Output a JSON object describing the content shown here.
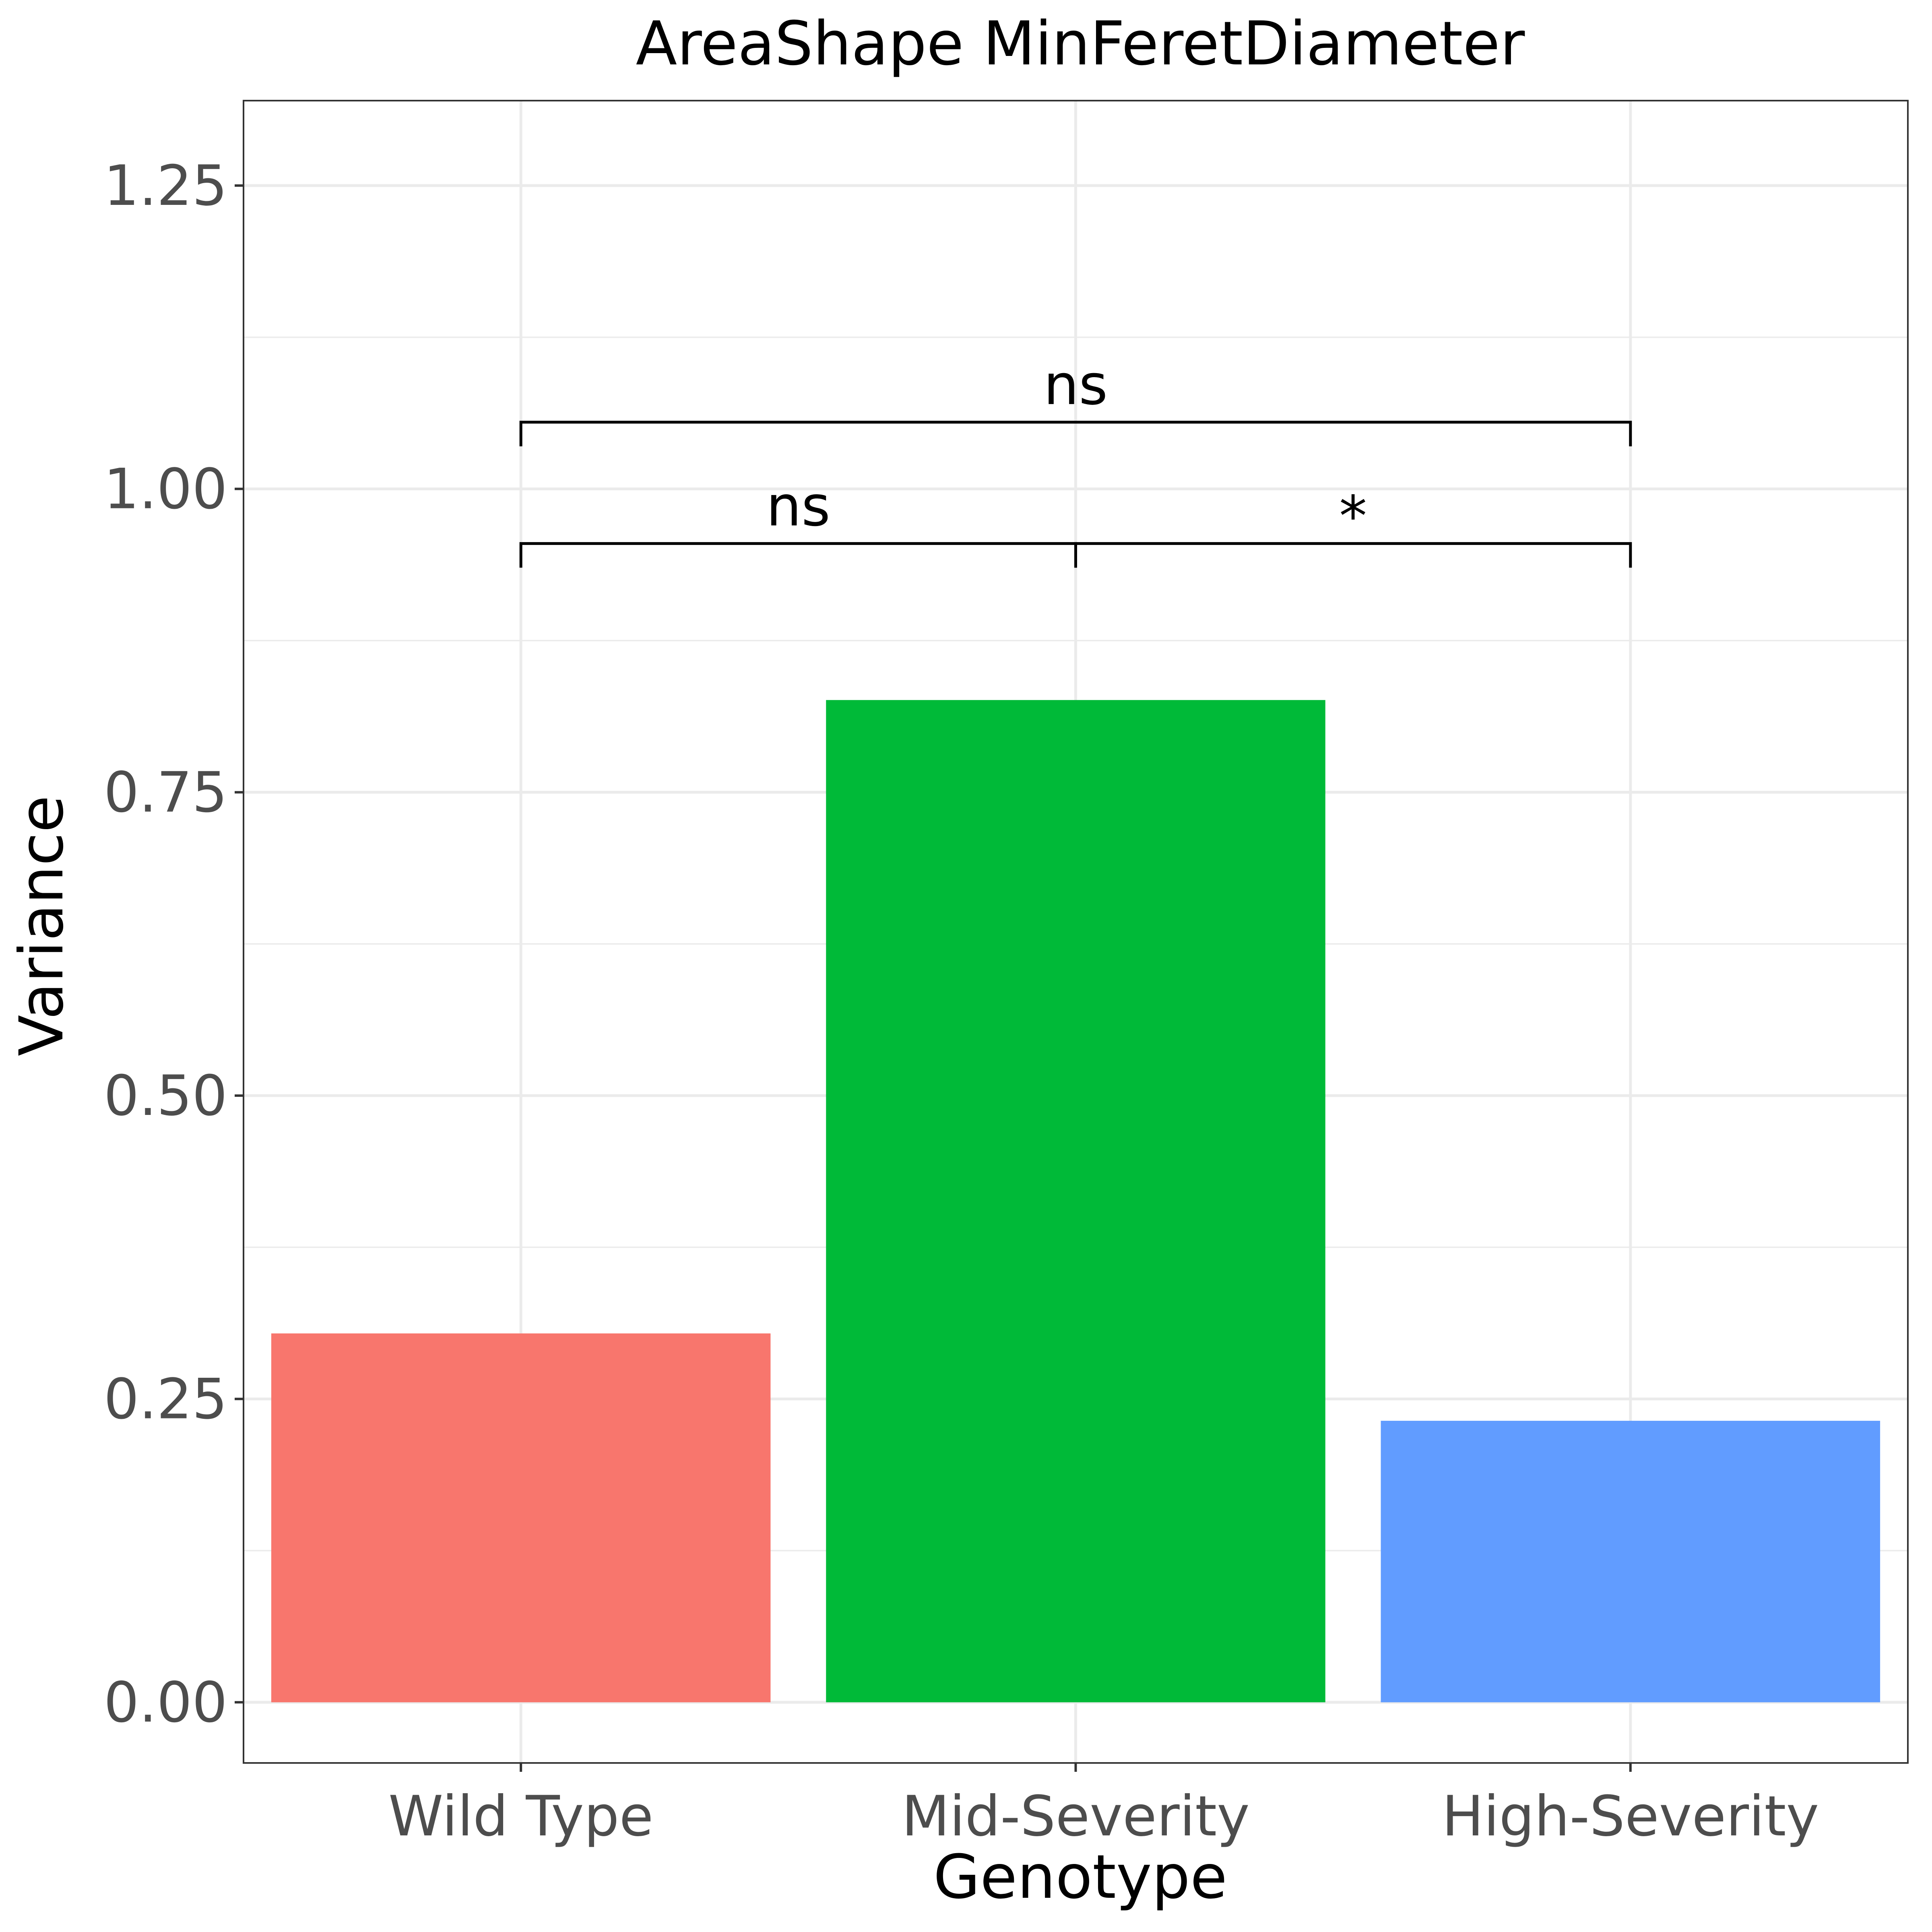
{
  "chart_data": {
    "type": "bar",
    "title": "AreaShape MinFeretDiameter",
    "xlabel": "Genotype",
    "ylabel": "Variance",
    "categories": [
      "Wild Type",
      "Mid-Severity",
      "High-Severity"
    ],
    "values": [
      0.304,
      0.826,
      0.232
    ],
    "colors": [
      "#F8766D",
      "#00BA38",
      "#619CFF"
    ],
    "ylim": [
      -0.05,
      1.32
    ],
    "yticks": [
      0.0,
      0.25,
      0.5,
      0.75,
      1.0,
      1.25
    ],
    "ytick_labels": [
      "0.00",
      "0.25",
      "0.50",
      "0.75",
      "1.00",
      "1.25"
    ],
    "grid": true,
    "legend": "none",
    "annotations": [
      {
        "from": "Wild Type",
        "to": "Mid-Severity",
        "y": 0.955,
        "label": "ns"
      },
      {
        "from": "Mid-Severity",
        "to": "High-Severity",
        "y": 0.955,
        "label": "*"
      },
      {
        "from": "Wild Type",
        "to": "High-Severity",
        "y": 1.055,
        "label": "ns"
      }
    ]
  }
}
